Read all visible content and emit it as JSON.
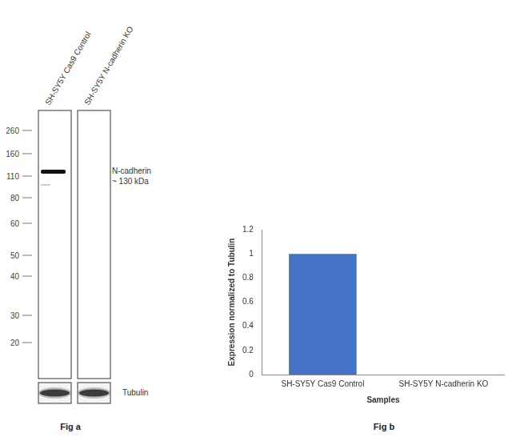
{
  "figure_a": {
    "caption": "Fig a",
    "lanes": [
      "SH-SY5Y Cas9 Control",
      "SH-SY5Y N-cadherin KO"
    ],
    "marker_kda": [
      260,
      160,
      110,
      80,
      60,
      50,
      40,
      30,
      20
    ],
    "band_label": [
      "N-cadherin",
      "~ 130 kDa"
    ],
    "n_cadherin_band": [
      true,
      false
    ],
    "loading_control": "Tubulin"
  },
  "chart_data": {
    "type": "bar",
    "caption": "Fig b",
    "categories": [
      "SH-SY5Y Cas9 Control",
      "SH-SY5Y N-cadherin KO"
    ],
    "values": [
      1,
      0
    ],
    "color": "#4472c4",
    "x_label": "Samples",
    "y_label": "Expression normalized to Tubulin",
    "ylim": [
      0,
      1.2
    ],
    "yticks": [
      0,
      0.2,
      0.4,
      0.6,
      0.8,
      1,
      1.2
    ],
    "grid": false
  }
}
